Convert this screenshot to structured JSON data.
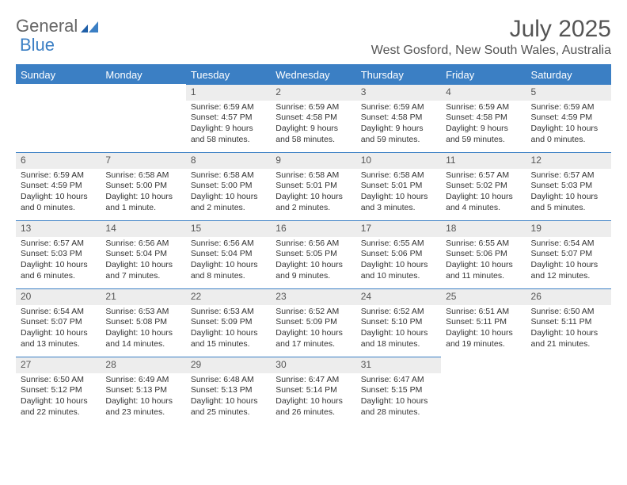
{
  "logo": {
    "part1": "General",
    "part2": "Blue"
  },
  "title": "July 2025",
  "location": "West Gosford, New South Wales, Australia",
  "colors": {
    "header_bg": "#3b7fc4",
    "header_text": "#ffffff",
    "daynum_bg": "#ededed",
    "rule": "#3b7fc4",
    "body_text": "#333333",
    "title_text": "#555555"
  },
  "weekdays": [
    "Sunday",
    "Monday",
    "Tuesday",
    "Wednesday",
    "Thursday",
    "Friday",
    "Saturday"
  ],
  "weeks": [
    [
      null,
      null,
      {
        "n": "1",
        "sunrise": "Sunrise: 6:59 AM",
        "sunset": "Sunset: 4:57 PM",
        "day1": "Daylight: 9 hours",
        "day2": "and 58 minutes."
      },
      {
        "n": "2",
        "sunrise": "Sunrise: 6:59 AM",
        "sunset": "Sunset: 4:58 PM",
        "day1": "Daylight: 9 hours",
        "day2": "and 58 minutes."
      },
      {
        "n": "3",
        "sunrise": "Sunrise: 6:59 AM",
        "sunset": "Sunset: 4:58 PM",
        "day1": "Daylight: 9 hours",
        "day2": "and 59 minutes."
      },
      {
        "n": "4",
        "sunrise": "Sunrise: 6:59 AM",
        "sunset": "Sunset: 4:58 PM",
        "day1": "Daylight: 9 hours",
        "day2": "and 59 minutes."
      },
      {
        "n": "5",
        "sunrise": "Sunrise: 6:59 AM",
        "sunset": "Sunset: 4:59 PM",
        "day1": "Daylight: 10 hours",
        "day2": "and 0 minutes."
      }
    ],
    [
      {
        "n": "6",
        "sunrise": "Sunrise: 6:59 AM",
        "sunset": "Sunset: 4:59 PM",
        "day1": "Daylight: 10 hours",
        "day2": "and 0 minutes."
      },
      {
        "n": "7",
        "sunrise": "Sunrise: 6:58 AM",
        "sunset": "Sunset: 5:00 PM",
        "day1": "Daylight: 10 hours",
        "day2": "and 1 minute."
      },
      {
        "n": "8",
        "sunrise": "Sunrise: 6:58 AM",
        "sunset": "Sunset: 5:00 PM",
        "day1": "Daylight: 10 hours",
        "day2": "and 2 minutes."
      },
      {
        "n": "9",
        "sunrise": "Sunrise: 6:58 AM",
        "sunset": "Sunset: 5:01 PM",
        "day1": "Daylight: 10 hours",
        "day2": "and 2 minutes."
      },
      {
        "n": "10",
        "sunrise": "Sunrise: 6:58 AM",
        "sunset": "Sunset: 5:01 PM",
        "day1": "Daylight: 10 hours",
        "day2": "and 3 minutes."
      },
      {
        "n": "11",
        "sunrise": "Sunrise: 6:57 AM",
        "sunset": "Sunset: 5:02 PM",
        "day1": "Daylight: 10 hours",
        "day2": "and 4 minutes."
      },
      {
        "n": "12",
        "sunrise": "Sunrise: 6:57 AM",
        "sunset": "Sunset: 5:03 PM",
        "day1": "Daylight: 10 hours",
        "day2": "and 5 minutes."
      }
    ],
    [
      {
        "n": "13",
        "sunrise": "Sunrise: 6:57 AM",
        "sunset": "Sunset: 5:03 PM",
        "day1": "Daylight: 10 hours",
        "day2": "and 6 minutes."
      },
      {
        "n": "14",
        "sunrise": "Sunrise: 6:56 AM",
        "sunset": "Sunset: 5:04 PM",
        "day1": "Daylight: 10 hours",
        "day2": "and 7 minutes."
      },
      {
        "n": "15",
        "sunrise": "Sunrise: 6:56 AM",
        "sunset": "Sunset: 5:04 PM",
        "day1": "Daylight: 10 hours",
        "day2": "and 8 minutes."
      },
      {
        "n": "16",
        "sunrise": "Sunrise: 6:56 AM",
        "sunset": "Sunset: 5:05 PM",
        "day1": "Daylight: 10 hours",
        "day2": "and 9 minutes."
      },
      {
        "n": "17",
        "sunrise": "Sunrise: 6:55 AM",
        "sunset": "Sunset: 5:06 PM",
        "day1": "Daylight: 10 hours",
        "day2": "and 10 minutes."
      },
      {
        "n": "18",
        "sunrise": "Sunrise: 6:55 AM",
        "sunset": "Sunset: 5:06 PM",
        "day1": "Daylight: 10 hours",
        "day2": "and 11 minutes."
      },
      {
        "n": "19",
        "sunrise": "Sunrise: 6:54 AM",
        "sunset": "Sunset: 5:07 PM",
        "day1": "Daylight: 10 hours",
        "day2": "and 12 minutes."
      }
    ],
    [
      {
        "n": "20",
        "sunrise": "Sunrise: 6:54 AM",
        "sunset": "Sunset: 5:07 PM",
        "day1": "Daylight: 10 hours",
        "day2": "and 13 minutes."
      },
      {
        "n": "21",
        "sunrise": "Sunrise: 6:53 AM",
        "sunset": "Sunset: 5:08 PM",
        "day1": "Daylight: 10 hours",
        "day2": "and 14 minutes."
      },
      {
        "n": "22",
        "sunrise": "Sunrise: 6:53 AM",
        "sunset": "Sunset: 5:09 PM",
        "day1": "Daylight: 10 hours",
        "day2": "and 15 minutes."
      },
      {
        "n": "23",
        "sunrise": "Sunrise: 6:52 AM",
        "sunset": "Sunset: 5:09 PM",
        "day1": "Daylight: 10 hours",
        "day2": "and 17 minutes."
      },
      {
        "n": "24",
        "sunrise": "Sunrise: 6:52 AM",
        "sunset": "Sunset: 5:10 PM",
        "day1": "Daylight: 10 hours",
        "day2": "and 18 minutes."
      },
      {
        "n": "25",
        "sunrise": "Sunrise: 6:51 AM",
        "sunset": "Sunset: 5:11 PM",
        "day1": "Daylight: 10 hours",
        "day2": "and 19 minutes."
      },
      {
        "n": "26",
        "sunrise": "Sunrise: 6:50 AM",
        "sunset": "Sunset: 5:11 PM",
        "day1": "Daylight: 10 hours",
        "day2": "and 21 minutes."
      }
    ],
    [
      {
        "n": "27",
        "sunrise": "Sunrise: 6:50 AM",
        "sunset": "Sunset: 5:12 PM",
        "day1": "Daylight: 10 hours",
        "day2": "and 22 minutes."
      },
      {
        "n": "28",
        "sunrise": "Sunrise: 6:49 AM",
        "sunset": "Sunset: 5:13 PM",
        "day1": "Daylight: 10 hours",
        "day2": "and 23 minutes."
      },
      {
        "n": "29",
        "sunrise": "Sunrise: 6:48 AM",
        "sunset": "Sunset: 5:13 PM",
        "day1": "Daylight: 10 hours",
        "day2": "and 25 minutes."
      },
      {
        "n": "30",
        "sunrise": "Sunrise: 6:47 AM",
        "sunset": "Sunset: 5:14 PM",
        "day1": "Daylight: 10 hours",
        "day2": "and 26 minutes."
      },
      {
        "n": "31",
        "sunrise": "Sunrise: 6:47 AM",
        "sunset": "Sunset: 5:15 PM",
        "day1": "Daylight: 10 hours",
        "day2": "and 28 minutes."
      },
      null,
      null
    ]
  ]
}
